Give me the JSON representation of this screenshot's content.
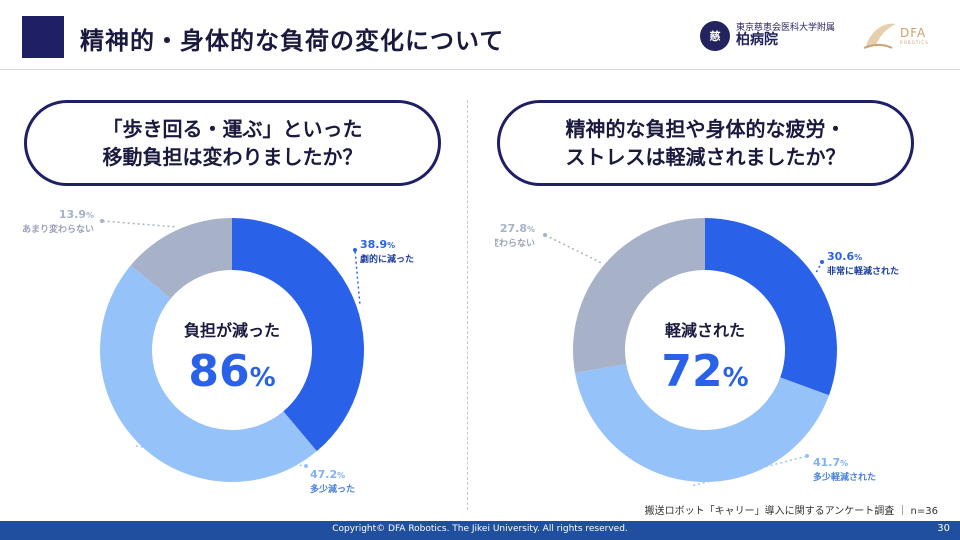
{
  "header": {
    "title": "精神的・身体的な負荷の変化について",
    "logo_jikei": {
      "emblem_text": "慈",
      "line1": "東京慈恵会医科大学附属",
      "line2": "柏病院"
    },
    "logo_dfa": {
      "text": "DFA",
      "sub": "ROBOTICS"
    }
  },
  "questions": {
    "left": [
      "「歩き回る・運ぶ」といった",
      "移動負担は変わりましたか？"
    ],
    "right": [
      "精神的な負担や身体的な疲労・",
      "ストレスは軽減されましたか？"
    ]
  },
  "chart_data": [
    {
      "type": "pie",
      "center_label": "負担が減った",
      "center_value": "86",
      "center_unit": "%",
      "slices": [
        {
          "label": "劇的に減った",
          "value": 38.9,
          "value_label": "38.9",
          "color": "#2962e8"
        },
        {
          "label": "多少減った",
          "value": 47.2,
          "value_label": "47.2",
          "color": "#95c2f8"
        },
        {
          "label": "あまり変わらない",
          "value": 13.9,
          "value_label": "13.9",
          "color": "#a7b1c8"
        }
      ]
    },
    {
      "type": "pie",
      "center_label": "軽減された",
      "center_value": "72",
      "center_unit": "%",
      "slices": [
        {
          "label": "非常に軽減された",
          "value": 30.6,
          "value_label": "30.6",
          "color": "#2962e8"
        },
        {
          "label": "多少軽減された",
          "value": 41.7,
          "value_label": "41.7",
          "color": "#95c2f8"
        },
        {
          "label": "あまり変わらない",
          "value": 27.8,
          "value_label": "27.8",
          "color": "#a7b1c8"
        }
      ]
    }
  ],
  "colors": {
    "navy": "#1f1f66",
    "accent": "#2962e8",
    "footer": "#1f4f9e"
  },
  "footnote": "搬送ロボット「キャリー」導入に関するアンケート調査 ｜ n=36",
  "footer": {
    "copyright": "Copyright© DFA Robotics. The Jikei University. All rights reserved.",
    "page_number": "30"
  }
}
